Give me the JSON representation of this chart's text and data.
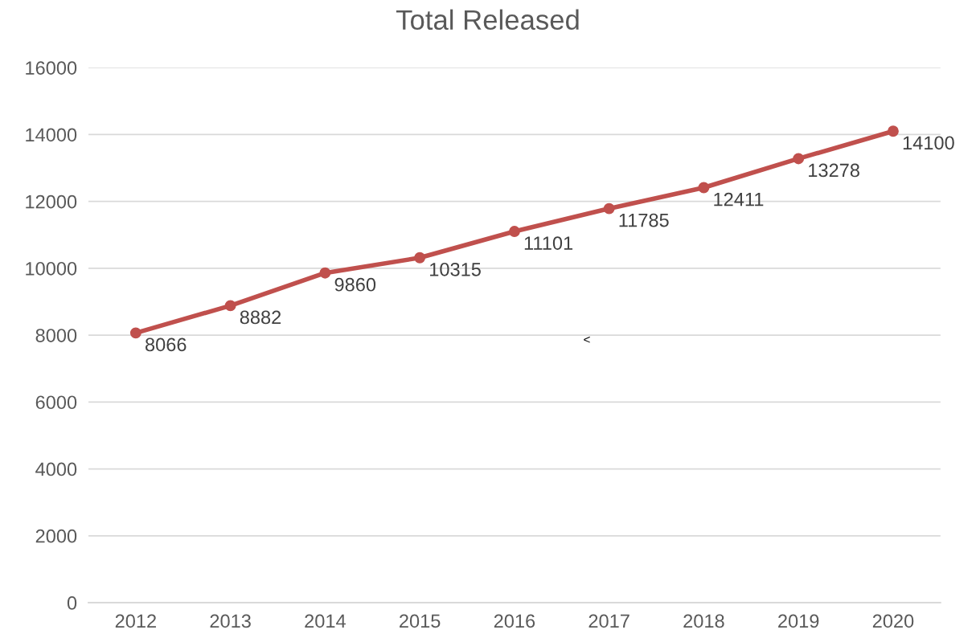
{
  "chart_data": {
    "type": "line",
    "title": "Total Released",
    "categories": [
      "2012",
      "2013",
      "2014",
      "2015",
      "2016",
      "2017",
      "2018",
      "2019",
      "2020"
    ],
    "series": [
      {
        "color": "#c0504d",
        "values": [
          8066,
          8882,
          9860,
          10315,
          11101,
          11785,
          12411,
          13278,
          14100
        ]
      }
    ],
    "ylim": [
      0,
      16000
    ],
    "yticks": [
      0,
      2000,
      4000,
      6000,
      8000,
      10000,
      12000,
      14000,
      16000
    ],
    "grid": "y",
    "marker": "circle",
    "line_style": "solid",
    "data_labels": true,
    "legend": false,
    "annotations": [
      "<"
    ]
  }
}
